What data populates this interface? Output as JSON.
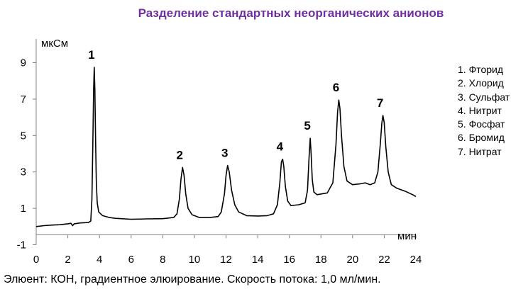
{
  "chart_data": {
    "type": "line",
    "title": "Разделение стандартных неорганических анионов",
    "xlabel": "мин",
    "ylabel": "мкСм",
    "xlim": [
      0,
      24
    ],
    "ylim": [
      -1,
      10
    ],
    "x_ticks": [
      "0",
      "2",
      "4",
      "6",
      "8",
      "10",
      "12",
      "14",
      "16",
      "18",
      "20",
      "22",
      "24"
    ],
    "y_ticks": [
      "-1",
      "1",
      "3",
      "5",
      "7",
      "9"
    ],
    "grid": false,
    "series": [
      {
        "color": "#000000",
        "points": [
          [
            0.0,
            0.0
          ],
          [
            0.5,
            0.05
          ],
          [
            1.0,
            0.08
          ],
          [
            1.5,
            0.1
          ],
          [
            2.0,
            0.15
          ],
          [
            2.2,
            0.18
          ],
          [
            2.3,
            0.05
          ],
          [
            2.4,
            0.15
          ],
          [
            2.8,
            0.2
          ],
          [
            3.3,
            0.22
          ],
          [
            3.45,
            0.3
          ],
          [
            3.52,
            1.5
          ],
          [
            3.58,
            4.5
          ],
          [
            3.63,
            7.5
          ],
          [
            3.67,
            8.75
          ],
          [
            3.71,
            7.5
          ],
          [
            3.75,
            5.0
          ],
          [
            3.8,
            2.5
          ],
          [
            3.86,
            1.3
          ],
          [
            3.95,
            0.8
          ],
          [
            4.2,
            0.6
          ],
          [
            4.6,
            0.5
          ],
          [
            5.0,
            0.45
          ],
          [
            6.0,
            0.4
          ],
          [
            7.0,
            0.42
          ],
          [
            8.0,
            0.43
          ],
          [
            8.7,
            0.5
          ],
          [
            8.9,
            0.7
          ],
          [
            9.05,
            1.5
          ],
          [
            9.15,
            2.6
          ],
          [
            9.25,
            3.25
          ],
          [
            9.35,
            2.8
          ],
          [
            9.45,
            1.8
          ],
          [
            9.6,
            1.0
          ],
          [
            9.85,
            0.65
          ],
          [
            10.3,
            0.5
          ],
          [
            11.0,
            0.5
          ],
          [
            11.5,
            0.55
          ],
          [
            11.7,
            0.8
          ],
          [
            11.9,
            1.8
          ],
          [
            12.0,
            2.8
          ],
          [
            12.1,
            3.35
          ],
          [
            12.2,
            3.0
          ],
          [
            12.35,
            2.0
          ],
          [
            12.55,
            1.2
          ],
          [
            12.8,
            0.8
          ],
          [
            13.3,
            0.6
          ],
          [
            14.0,
            0.58
          ],
          [
            14.6,
            0.6
          ],
          [
            15.0,
            0.7
          ],
          [
            15.25,
            1.2
          ],
          [
            15.4,
            2.4
          ],
          [
            15.5,
            3.55
          ],
          [
            15.58,
            3.7
          ],
          [
            15.65,
            3.3
          ],
          [
            15.75,
            2.2
          ],
          [
            15.9,
            1.4
          ],
          [
            16.1,
            1.15
          ],
          [
            16.6,
            1.2
          ],
          [
            17.0,
            1.3
          ],
          [
            17.15,
            2.0
          ],
          [
            17.25,
            3.8
          ],
          [
            17.32,
            4.85
          ],
          [
            17.38,
            4.0
          ],
          [
            17.45,
            2.6
          ],
          [
            17.55,
            1.9
          ],
          [
            17.75,
            1.75
          ],
          [
            18.4,
            1.85
          ],
          [
            18.75,
            2.4
          ],
          [
            18.95,
            4.5
          ],
          [
            19.05,
            6.3
          ],
          [
            19.13,
            6.95
          ],
          [
            19.2,
            6.5
          ],
          [
            19.3,
            5.0
          ],
          [
            19.45,
            3.3
          ],
          [
            19.65,
            2.5
          ],
          [
            20.0,
            2.3
          ],
          [
            20.5,
            2.35
          ],
          [
            20.8,
            2.4
          ],
          [
            21.1,
            2.3
          ],
          [
            21.4,
            2.4
          ],
          [
            21.6,
            3.0
          ],
          [
            21.75,
            4.5
          ],
          [
            21.85,
            5.7
          ],
          [
            21.92,
            6.1
          ],
          [
            22.0,
            5.7
          ],
          [
            22.1,
            4.4
          ],
          [
            22.25,
            3.0
          ],
          [
            22.45,
            2.3
          ],
          [
            22.8,
            2.1
          ],
          [
            23.3,
            1.95
          ],
          [
            23.8,
            1.75
          ],
          [
            24.0,
            1.65
          ]
        ]
      }
    ],
    "peak_labels": [
      {
        "text": "1",
        "x": 3.67,
        "y": 8.75
      },
      {
        "text": "2",
        "x": 9.25,
        "y": 3.25
      },
      {
        "text": "3",
        "x": 12.1,
        "y": 3.35
      },
      {
        "text": "4",
        "x": 15.58,
        "y": 3.7
      },
      {
        "text": "5",
        "x": 17.32,
        "y": 4.85
      },
      {
        "text": "6",
        "x": 19.13,
        "y": 6.95
      },
      {
        "text": "7",
        "x": 21.92,
        "y": 6.1
      }
    ],
    "legend": {
      "position": "right",
      "entries": [
        "1. Фторид",
        "2. Хлорид",
        "3. Сульфат",
        "4. Нитрит",
        "5. Фосфат",
        "6. Бромид",
        "7. Нитрат"
      ]
    }
  },
  "footer": "Элюент: КОН, градиентное элюирование. Скорость потока: 1,0 мл/мин."
}
